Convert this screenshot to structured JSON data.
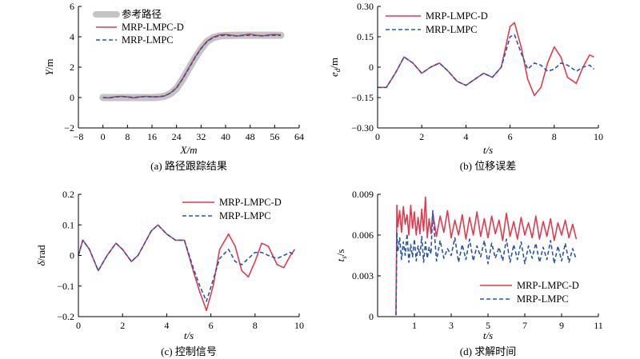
{
  "colors": {
    "red": "#e23a4e",
    "blue": "#2a56a8",
    "gray": "#c4c4c4"
  },
  "chart_data": [
    {
      "id": "a",
      "type": "line",
      "caption": "(a) 路径跟踪结果",
      "xlabel": "X/m",
      "ylabel": "Y/m",
      "xlim": [
        -8,
        64
      ],
      "ylim": [
        -2,
        6
      ],
      "xticks": [
        -8,
        0,
        8,
        16,
        24,
        32,
        40,
        48,
        56,
        64
      ],
      "xtick_labels": [
        "−8",
        "0",
        "8",
        "16",
        "24",
        "32",
        "40",
        "48",
        "56",
        "64"
      ],
      "yticks": [
        -2,
        0,
        2,
        4,
        6
      ],
      "ytick_labels": [
        "−2",
        "0",
        "2",
        "4",
        "6"
      ],
      "legend": [
        "参考路径",
        "MRP-LMPC-D",
        "MRP-LMPC"
      ],
      "series": [
        {
          "name": "参考路径",
          "style": "gray-thick",
          "x": [
            0,
            4,
            8,
            12,
            16,
            18,
            20,
            22,
            24,
            26,
            28,
            30,
            32,
            34,
            36,
            38,
            40,
            44,
            48,
            52,
            56,
            58
          ],
          "y": [
            0,
            0,
            0,
            0,
            0,
            0.02,
            0.08,
            0.25,
            0.6,
            1.2,
            1.9,
            2.6,
            3.2,
            3.7,
            3.95,
            4.05,
            4.08,
            4.1,
            4.1,
            4.1,
            4.1,
            4.1
          ]
        },
        {
          "name": "MRP-LMPC-D",
          "style": "red-solid",
          "x": [
            0,
            2,
            4,
            6,
            8,
            10,
            12,
            14,
            16,
            18,
            20,
            22,
            24,
            26,
            28,
            30,
            32,
            34,
            36,
            38,
            40,
            42,
            44,
            46,
            48,
            50,
            52,
            54,
            56,
            58
          ],
          "y": [
            0,
            -0.02,
            0.05,
            0.08,
            0.04,
            -0.02,
            0.04,
            0.08,
            0.05,
            0.05,
            0.1,
            0.3,
            0.65,
            1.25,
            1.95,
            2.65,
            3.25,
            3.72,
            3.98,
            4.12,
            4.15,
            4.1,
            4.05,
            4.12,
            4.18,
            4.1,
            4.05,
            4.12,
            4.15,
            4.12
          ]
        },
        {
          "name": "MRP-LMPC",
          "style": "blue-dashed",
          "x": [
            0,
            2,
            4,
            6,
            8,
            10,
            12,
            14,
            16,
            18,
            20,
            22,
            24,
            26,
            28,
            30,
            32,
            34,
            36,
            38,
            40,
            42,
            44,
            46,
            48,
            50,
            52,
            54,
            56,
            58
          ],
          "y": [
            0,
            -0.02,
            0.04,
            0.07,
            0.04,
            0,
            0.04,
            0.07,
            0.05,
            0.05,
            0.1,
            0.29,
            0.63,
            1.22,
            1.92,
            2.62,
            3.22,
            3.7,
            3.96,
            4.08,
            4.1,
            4.07,
            4.06,
            4.09,
            4.1,
            4.08,
            4.07,
            4.09,
            4.1,
            4.09
          ]
        }
      ]
    },
    {
      "id": "b",
      "type": "line",
      "caption": "(b) 位移误差",
      "xlabel": "t/s",
      "ylabel": "e_d/m",
      "ylabel_main": "e",
      "ylabel_sub": "d",
      "ylabel_unit": "/m",
      "xlim": [
        0,
        10
      ],
      "ylim": [
        -0.3,
        0.3
      ],
      "xticks": [
        0,
        2,
        4,
        6,
        8,
        10
      ],
      "xtick_labels": [
        "0",
        "2",
        "4",
        "6",
        "8",
        "10"
      ],
      "yticks": [
        -0.3,
        -0.15,
        0,
        0.15,
        0.3
      ],
      "ytick_labels": [
        "−0.30",
        "−0.15",
        "0",
        "0.15",
        "0.30"
      ],
      "legend": [
        "MRP-LMPC-D",
        "MRP-LMPC"
      ],
      "series": [
        {
          "name": "MRP-LMPC-D",
          "style": "red-solid",
          "x": [
            0,
            0.4,
            0.8,
            1.2,
            1.6,
            2,
            2.4,
            2.8,
            3.2,
            3.6,
            4,
            4.4,
            4.8,
            5.2,
            5.6,
            6,
            6.2,
            6.5,
            6.8,
            7.1,
            7.4,
            7.7,
            8,
            8.3,
            8.6,
            9,
            9.3,
            9.6,
            9.8
          ],
          "y": [
            -0.1,
            -0.1,
            -0.03,
            0.05,
            0.02,
            -0.03,
            0,
            0.02,
            -0.02,
            -0.07,
            -0.09,
            -0.06,
            -0.03,
            -0.05,
            0,
            0.2,
            0.22,
            0.1,
            -0.06,
            -0.14,
            -0.1,
            0.02,
            0.1,
            0.05,
            -0.05,
            -0.08,
            0,
            0.06,
            0.05
          ]
        },
        {
          "name": "MRP-LMPC",
          "style": "blue-dashed",
          "x": [
            0,
            0.4,
            0.8,
            1.2,
            1.6,
            2,
            2.4,
            2.8,
            3.2,
            3.6,
            4,
            4.4,
            4.8,
            5.2,
            5.6,
            6,
            6.2,
            6.5,
            6.8,
            7.1,
            7.4,
            7.7,
            8,
            8.3,
            8.6,
            9,
            9.3,
            9.6,
            9.8
          ],
          "y": [
            -0.1,
            -0.1,
            -0.03,
            0.05,
            0.02,
            -0.03,
            0,
            0.02,
            -0.02,
            -0.07,
            -0.09,
            -0.06,
            -0.03,
            -0.05,
            0,
            0.15,
            0.16,
            0.07,
            -0.01,
            0.02,
            0.01,
            -0.02,
            -0.01,
            0.02,
            0.01,
            -0.02,
            0,
            0.01,
            -0.01
          ]
        }
      ]
    },
    {
      "id": "c",
      "type": "line",
      "caption": "(c) 控制信号",
      "xlabel": "t/s",
      "ylabel": "δ/rad",
      "xlim": [
        0,
        10
      ],
      "ylim": [
        -0.2,
        0.2
      ],
      "xticks": [
        0,
        2,
        4,
        6,
        8,
        10
      ],
      "xtick_labels": [
        "0",
        "2",
        "4",
        "6",
        "8",
        "10"
      ],
      "yticks": [
        -0.2,
        -0.1,
        0,
        0.1,
        0.2
      ],
      "ytick_labels": [
        "−0.2",
        "−0.1",
        "0",
        "0.1",
        "0.2"
      ],
      "legend": [
        "MRP-LMPC-D",
        "MRP-LMPC"
      ],
      "series": [
        {
          "name": "MRP-LMPC-D",
          "style": "red-solid",
          "x": [
            0,
            0.2,
            0.5,
            0.9,
            1.3,
            1.7,
            2,
            2.4,
            2.7,
            3,
            3.3,
            3.6,
            4,
            4.4,
            4.8,
            5.2,
            5.5,
            5.8,
            6.1,
            6.4,
            6.8,
            7.1,
            7.4,
            7.7,
            8,
            8.3,
            8.6,
            9,
            9.3,
            9.6,
            9.8
          ],
          "y": [
            0,
            0.05,
            0.02,
            -0.05,
            0,
            0.04,
            0.02,
            -0.02,
            0,
            0.04,
            0.08,
            0.1,
            0.07,
            0.05,
            0.05,
            -0.05,
            -0.12,
            -0.18,
            -0.1,
            0.02,
            0.07,
            0.03,
            -0.05,
            -0.07,
            -0.02,
            0.04,
            0.03,
            -0.03,
            -0.04,
            0,
            0.02
          ]
        },
        {
          "name": "MRP-LMPC",
          "style": "blue-dashed",
          "x": [
            0,
            0.2,
            0.5,
            0.9,
            1.3,
            1.7,
            2,
            2.4,
            2.7,
            3,
            3.3,
            3.6,
            4,
            4.4,
            4.8,
            5.2,
            5.5,
            5.8,
            6.1,
            6.4,
            6.8,
            7.1,
            7.4,
            7.7,
            8,
            8.3,
            8.6,
            9,
            9.3,
            9.6,
            9.8
          ],
          "y": [
            0,
            0.05,
            0.02,
            -0.05,
            0,
            0.04,
            0.02,
            -0.02,
            0,
            0.04,
            0.08,
            0.1,
            0.07,
            0.05,
            0.05,
            -0.04,
            -0.1,
            -0.15,
            -0.08,
            -0.01,
            0.02,
            -0.02,
            -0.03,
            -0.01,
            0.01,
            0.01,
            0,
            -0.01,
            0,
            0.01,
            0
          ]
        }
      ]
    },
    {
      "id": "d",
      "type": "line",
      "caption": "(d) 求解时间",
      "xlabel": "t/s",
      "ylabel": "t_s/s",
      "ylabel_main": "t",
      "ylabel_sub": "s",
      "ylabel_unit": "/s",
      "xlim": [
        -1,
        11
      ],
      "ylim": [
        0,
        0.009
      ],
      "xticks": [
        1,
        3,
        5,
        7,
        9,
        11
      ],
      "xtick_labels": [
        "1",
        "3",
        "5",
        "7",
        "9",
        "11"
      ],
      "yticks": [
        0,
        0.003,
        0.006,
        0.009
      ],
      "ytick_labels": [
        "0",
        "0.003",
        "0.006",
        "0.009"
      ],
      "legend": [
        "MRP-LMPC-D",
        "MRP-LMPC"
      ],
      "series": [
        {
          "name": "MRP-LMPC-D",
          "style": "red-solid",
          "x": [
            0,
            0.05,
            0.1,
            0.2,
            0.3,
            0.4,
            0.5,
            0.6,
            0.7,
            0.8,
            0.9,
            1,
            1.1,
            1.2,
            1.3,
            1.4,
            1.5,
            1.6,
            1.7,
            1.8,
            1.9,
            2,
            2.2,
            2.4,
            2.6,
            2.8,
            3,
            3.2,
            3.4,
            3.6,
            3.8,
            4,
            4.2,
            4.4,
            4.6,
            4.8,
            5,
            5.2,
            5.4,
            5.6,
            5.8,
            6,
            6.2,
            6.4,
            6.6,
            6.8,
            7,
            7.2,
            7.4,
            7.6,
            7.8,
            8,
            8.2,
            8.4,
            8.6,
            8.8,
            9,
            9.2,
            9.4,
            9.6,
            9.8
          ],
          "y": [
            0.0001,
            0.0082,
            0.0066,
            0.0078,
            0.0062,
            0.0081,
            0.0068,
            0.0075,
            0.006,
            0.0082,
            0.0065,
            0.0077,
            0.006,
            0.0073,
            0.0061,
            0.0079,
            0.0063,
            0.0088,
            0.0058,
            0.0072,
            0.0061,
            0.0076,
            0.0059,
            0.0074,
            0.0062,
            0.0078,
            0.0058,
            0.0071,
            0.006,
            0.0075,
            0.0057,
            0.0073,
            0.006,
            0.0077,
            0.0059,
            0.0072,
            0.0058,
            0.0074,
            0.0061,
            0.0071,
            0.0056,
            0.0076,
            0.0059,
            0.007,
            0.0057,
            0.0073,
            0.006,
            0.0069,
            0.0058,
            0.0074,
            0.0057,
            0.007,
            0.0059,
            0.0072,
            0.0056,
            0.0069,
            0.006,
            0.0071,
            0.0058,
            0.0068,
            0.0057
          ]
        },
        {
          "name": "MRP-LMPC",
          "style": "blue-dashed",
          "x": [
            0,
            0.05,
            0.1,
            0.2,
            0.3,
            0.4,
            0.5,
            0.6,
            0.7,
            0.8,
            0.9,
            1,
            1.1,
            1.2,
            1.3,
            1.4,
            1.5,
            1.6,
            1.7,
            1.8,
            1.9,
            2,
            2.2,
            2.4,
            2.6,
            2.8,
            3,
            3.2,
            3.4,
            3.6,
            3.8,
            4,
            4.2,
            4.4,
            4.6,
            4.8,
            5,
            5.2,
            5.4,
            5.6,
            5.8,
            6,
            6.2,
            6.4,
            6.6,
            6.8,
            7,
            7.2,
            7.4,
            7.6,
            7.8,
            8,
            8.2,
            8.4,
            8.6,
            8.8,
            9,
            9.2,
            9.4,
            9.6,
            9.8
          ],
          "y": [
            0.0001,
            0.0062,
            0.0048,
            0.0058,
            0.0042,
            0.0055,
            0.0045,
            0.0061,
            0.004,
            0.0053,
            0.0044,
            0.0057,
            0.0041,
            0.0052,
            0.0045,
            0.0059,
            0.004,
            0.0055,
            0.0043,
            0.0051,
            0.0046,
            0.0078,
            0.0041,
            0.0056,
            0.0043,
            0.005,
            0.0045,
            0.0058,
            0.004,
            0.0053,
            0.0042,
            0.0057,
            0.0041,
            0.0052,
            0.0044,
            0.0056,
            0.0039,
            0.0054,
            0.0043,
            0.0051,
            0.0041,
            0.0057,
            0.004,
            0.0053,
            0.0042,
            0.0055,
            0.0039,
            0.0052,
            0.0043,
            0.0054,
            0.004,
            0.0051,
            0.0042,
            0.0056,
            0.0039,
            0.0052,
            0.0041,
            0.0054,
            0.004,
            0.005,
            0.0042
          ]
        }
      ]
    }
  ]
}
